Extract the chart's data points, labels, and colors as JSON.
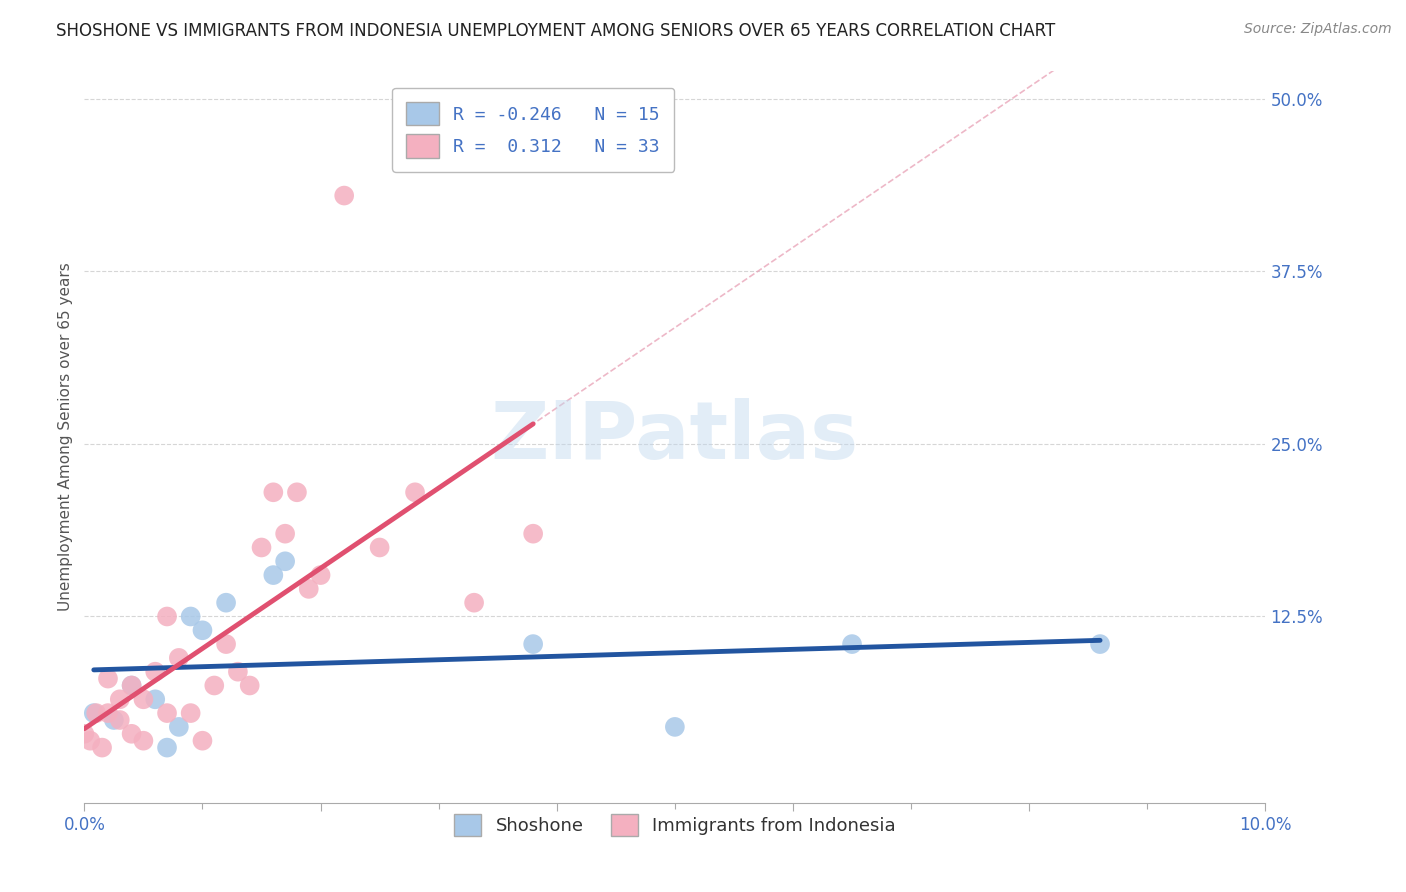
{
  "title": "SHOSHONE VS IMMIGRANTS FROM INDONESIA UNEMPLOYMENT AMONG SENIORS OVER 65 YEARS CORRELATION CHART",
  "source": "Source: ZipAtlas.com",
  "ylabel": "Unemployment Among Seniors over 65 years",
  "xlim": [
    0.0,
    0.1
  ],
  "ylim": [
    -0.01,
    0.52
  ],
  "yticks": [
    0.0,
    0.125,
    0.25,
    0.375,
    0.5
  ],
  "ytick_labels": [
    "",
    "12.5%",
    "25.0%",
    "37.5%",
    "50.0%"
  ],
  "xticks": [
    0.0,
    0.02,
    0.04,
    0.06,
    0.08,
    0.1
  ],
  "xtick_labels": [
    "0.0%",
    "",
    "",
    "",
    "",
    "10.0%"
  ],
  "shoshone_R": -0.246,
  "shoshone_N": 15,
  "indonesia_R": 0.312,
  "indonesia_N": 33,
  "shoshone_color": "#a8c8e8",
  "shoshone_line_color": "#2255a0",
  "indonesia_color": "#f4b0c0",
  "indonesia_line_color": "#e05070",
  "background_color": "#ffffff",
  "grid_color": "#cccccc",
  "watermark": "ZIPatlas",
  "shoshone_x": [
    0.0008,
    0.0025,
    0.004,
    0.006,
    0.007,
    0.008,
    0.009,
    0.01,
    0.012,
    0.016,
    0.017,
    0.038,
    0.05,
    0.065,
    0.086
  ],
  "shoshone_y": [
    0.055,
    0.05,
    0.075,
    0.065,
    0.03,
    0.045,
    0.125,
    0.115,
    0.135,
    0.155,
    0.165,
    0.105,
    0.045,
    0.105,
    0.105
  ],
  "indonesia_x": [
    0.0,
    0.0005,
    0.001,
    0.0015,
    0.002,
    0.002,
    0.003,
    0.003,
    0.004,
    0.004,
    0.005,
    0.005,
    0.006,
    0.007,
    0.007,
    0.008,
    0.009,
    0.01,
    0.011,
    0.012,
    0.013,
    0.014,
    0.015,
    0.016,
    0.017,
    0.018,
    0.019,
    0.02,
    0.022,
    0.025,
    0.028,
    0.033,
    0.038
  ],
  "indonesia_y": [
    0.04,
    0.035,
    0.055,
    0.03,
    0.055,
    0.08,
    0.065,
    0.05,
    0.04,
    0.075,
    0.035,
    0.065,
    0.085,
    0.055,
    0.125,
    0.095,
    0.055,
    0.035,
    0.075,
    0.105,
    0.085,
    0.075,
    0.175,
    0.215,
    0.185,
    0.215,
    0.145,
    0.155,
    0.43,
    0.175,
    0.215,
    0.135,
    0.185
  ],
  "title_fontsize": 12,
  "axis_label_fontsize": 11,
  "tick_fontsize": 12,
  "legend_fontsize": 13,
  "source_fontsize": 10
}
